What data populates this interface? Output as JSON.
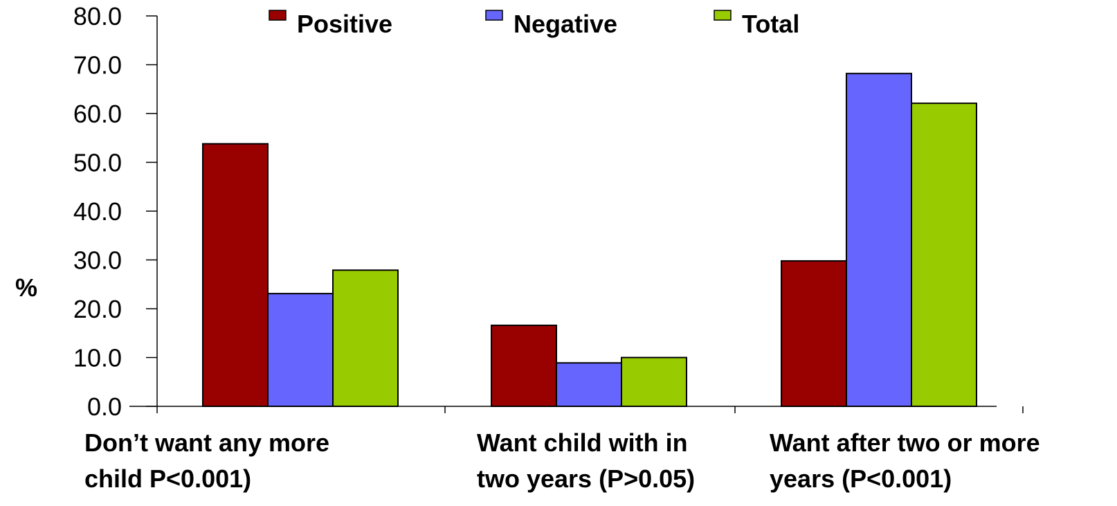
{
  "chart_data": {
    "type": "bar",
    "ylabel": "%",
    "xlabel": "",
    "ylim": [
      0,
      80
    ],
    "yticks": [
      "0.0",
      "10.0",
      "20.0",
      "30.0",
      "40.0",
      "50.0",
      "60.0",
      "70.0",
      "80.0"
    ],
    "categories": [
      [
        "Don’t want any more",
        "child  P<0.001)"
      ],
      [
        "Want child with in",
        "two years (P>0.05)"
      ],
      [
        "Want after two or more",
        "years (P<0.001)"
      ]
    ],
    "series": [
      {
        "name": "Positive",
        "color": "#990000",
        "values": [
          53.8,
          16.6,
          29.8
        ]
      },
      {
        "name": "Negative",
        "color": "#6666FF",
        "values": [
          23.1,
          8.9,
          68.2
        ]
      },
      {
        "name": "Total",
        "color": "#99CC00",
        "values": [
          27.9,
          10.0,
          62.1
        ]
      }
    ],
    "legend_position": "top",
    "grid": false
  }
}
